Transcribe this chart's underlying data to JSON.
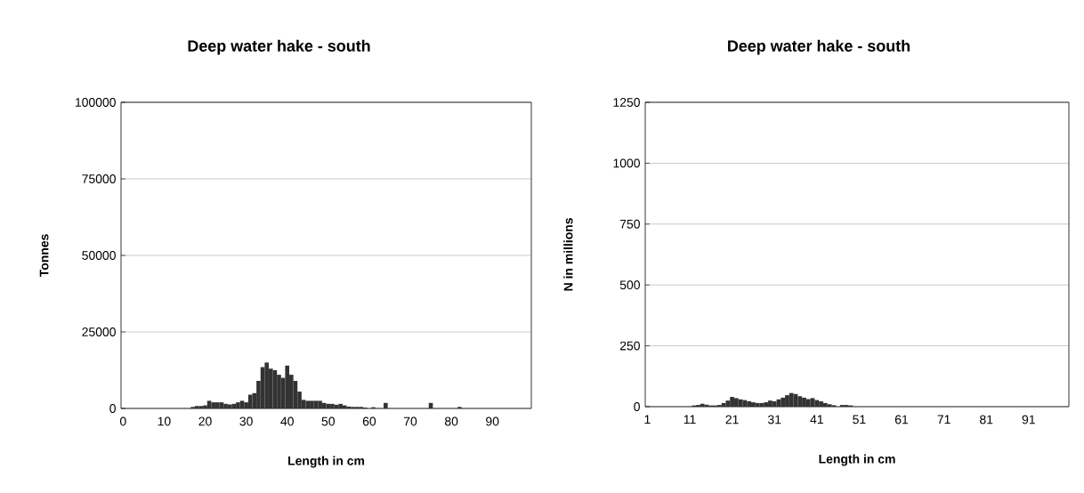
{
  "chart_data": [
    {
      "type": "bar",
      "title": "Deep water hake - south",
      "xlabel": "Length in cm",
      "ylabel": "Tonnes",
      "categories": [
        "0",
        null,
        null,
        null,
        null,
        null,
        null,
        null,
        null,
        null,
        "10",
        null,
        null,
        null,
        null,
        null,
        null,
        null,
        null,
        null,
        "20",
        null,
        null,
        null,
        null,
        null,
        null,
        null,
        null,
        null,
        "30",
        null,
        null,
        null,
        null,
        null,
        null,
        null,
        null,
        null,
        "40",
        null,
        null,
        null,
        null,
        null,
        null,
        null,
        null,
        null,
        "50",
        null,
        null,
        null,
        null,
        null,
        null,
        null,
        null,
        null,
        "60",
        null,
        null,
        null,
        null,
        null,
        null,
        null,
        null,
        null,
        "70",
        null,
        null,
        null,
        null,
        null,
        null,
        null,
        null,
        null,
        "80",
        null,
        null,
        null,
        null,
        null,
        null,
        null,
        null,
        null,
        "90",
        null,
        null,
        null,
        null,
        null,
        null,
        null,
        null,
        null
      ],
      "values": [
        0,
        0,
        0,
        0,
        0,
        0,
        0,
        0,
        0,
        0,
        0,
        0,
        0,
        0,
        0,
        0,
        0,
        500,
        800,
        800,
        1000,
        2500,
        2000,
        2000,
        2000,
        1500,
        1300,
        1500,
        2000,
        2500,
        2000,
        4500,
        5000,
        9000,
        13500,
        15000,
        13000,
        12500,
        11000,
        10000,
        14000,
        11000,
        9000,
        5500,
        2800,
        2500,
        2500,
        2500,
        2500,
        1800,
        1500,
        1500,
        1200,
        1500,
        1000,
        600,
        500,
        500,
        500,
        300,
        0,
        400,
        0,
        0,
        1800,
        0,
        0,
        0,
        0,
        0,
        0,
        0,
        0,
        0,
        0,
        1800,
        0,
        0,
        0,
        0,
        0,
        0,
        500,
        0,
        0,
        0,
        0,
        0,
        0,
        0,
        0,
        0,
        0,
        0,
        0,
        0,
        0,
        0,
        0,
        0
      ],
      "color": "#333333",
      "ylim": [
        0,
        100000
      ],
      "yticks": [
        0,
        25000,
        50000,
        75000,
        100000
      ],
      "grid": "y"
    },
    {
      "type": "bar",
      "title": "Deep water hake - south",
      "xlabel": "Length in cm",
      "ylabel": "N in millions",
      "categories": [
        "1",
        null,
        null,
        null,
        null,
        null,
        null,
        null,
        null,
        null,
        "11",
        null,
        null,
        null,
        null,
        null,
        null,
        null,
        null,
        null,
        "21",
        null,
        null,
        null,
        null,
        null,
        null,
        null,
        null,
        null,
        "31",
        null,
        null,
        null,
        null,
        null,
        null,
        null,
        null,
        null,
        "41",
        null,
        null,
        null,
        null,
        null,
        null,
        null,
        null,
        null,
        "51",
        null,
        null,
        null,
        null,
        null,
        null,
        null,
        null,
        null,
        "61",
        null,
        null,
        null,
        null,
        null,
        null,
        null,
        null,
        null,
        "71",
        null,
        null,
        null,
        null,
        null,
        null,
        null,
        null,
        null,
        "81",
        null,
        null,
        null,
        null,
        null,
        null,
        null,
        null,
        null,
        "91",
        null,
        null,
        null,
        null,
        null,
        null,
        null,
        null,
        null
      ],
      "values": [
        0,
        0,
        0,
        0,
        0,
        0,
        0,
        0,
        0,
        0,
        0,
        5,
        7,
        12,
        8,
        5,
        5,
        7,
        15,
        25,
        40,
        35,
        30,
        27,
        22,
        18,
        15,
        15,
        18,
        25,
        22,
        30,
        37,
        47,
        56,
        52,
        43,
        37,
        31,
        35,
        27,
        22,
        15,
        10,
        6,
        0,
        7,
        7,
        5,
        0,
        0,
        0,
        0,
        0,
        0,
        0,
        0,
        0,
        0,
        0,
        0,
        0,
        0,
        0,
        0,
        0,
        0,
        0,
        0,
        0,
        0,
        0,
        0,
        0,
        0,
        0,
        0,
        0,
        0,
        0,
        0,
        0,
        0,
        0,
        0,
        0,
        0,
        0,
        0,
        0,
        0,
        0,
        0,
        0,
        0,
        0,
        0,
        0,
        0,
        0
      ],
      "color": "#333333",
      "ylim": [
        0,
        1250
      ],
      "yticks": [
        0,
        250,
        500,
        750,
        1000,
        1250
      ],
      "grid": "y"
    }
  ]
}
